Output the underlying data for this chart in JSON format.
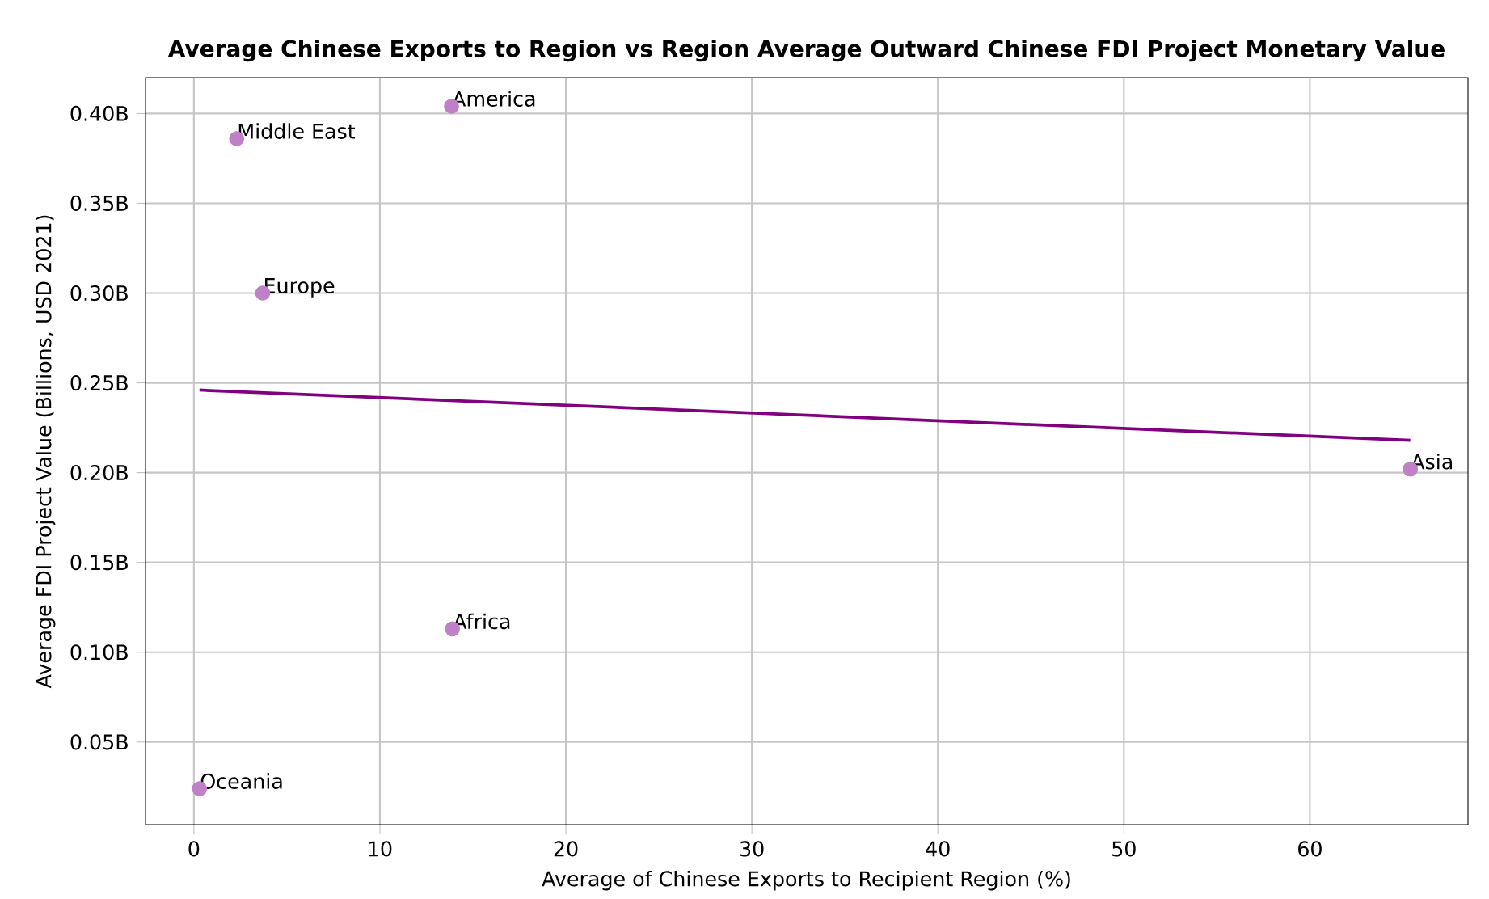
{
  "chart_data": {
    "type": "scatter",
    "title": "Average Chinese Exports to Region vs Region Average Outward Chinese FDI Project Monetary Value",
    "xlabel": "Average of Chinese Exports to Recipient Region (%)",
    "ylabel": "Average FDI Project Value (Billions, USD 2021)",
    "series": [
      {
        "color": "#bf80c8",
        "x": [
          13.85,
          2.3,
          3.7,
          65.4,
          13.9,
          0.3
        ],
        "values": [
          0.404,
          0.386,
          0.3,
          0.202,
          0.113,
          0.024
        ]
      },
      {
        "type": "line",
        "color": "#800080",
        "marker": "none",
        "x": [
          0.3,
          65.4
        ],
        "values": [
          0.246,
          0.218
        ]
      }
    ],
    "annotations": [
      {
        "text": "America",
        "x": 13.85,
        "y": 0.404
      },
      {
        "text": "Middle East",
        "x": 2.3,
        "y": 0.386
      },
      {
        "text": "Europe",
        "x": 3.7,
        "y": 0.3
      },
      {
        "text": "Asia",
        "x": 65.4,
        "y": 0.202
      },
      {
        "text": "Africa",
        "x": 13.9,
        "y": 0.113
      },
      {
        "text": "Oceania",
        "x": 0.3,
        "y": 0.024
      }
    ],
    "xlim": [
      -2.6,
      68.5
    ],
    "ylim": [
      0.004,
      0.42
    ],
    "xticks": [
      0,
      10,
      20,
      30,
      40,
      50,
      60
    ],
    "yticks": [
      {
        "value": 0.05,
        "label": "0.05B"
      },
      {
        "value": 0.1,
        "label": "0.10B"
      },
      {
        "value": 0.15,
        "label": "0.15B"
      },
      {
        "value": 0.2,
        "label": "0.20B"
      },
      {
        "value": 0.25,
        "label": "0.25B"
      },
      {
        "value": 0.3,
        "label": "0.30B"
      },
      {
        "value": 0.35,
        "label": "0.35B"
      },
      {
        "value": 0.4,
        "label": "0.40B"
      }
    ],
    "grid": true,
    "marker": "circle"
  }
}
